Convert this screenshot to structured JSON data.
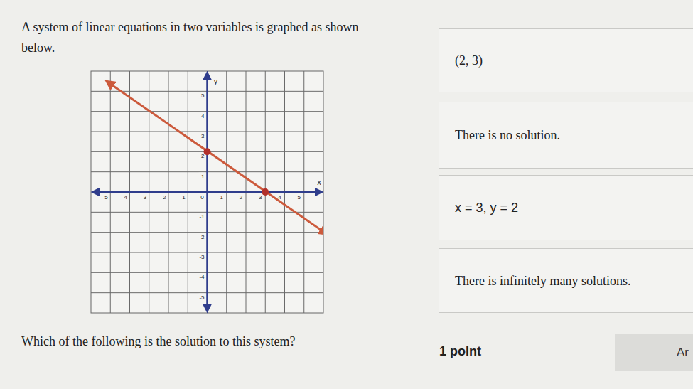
{
  "intro": "A system of linear equations in two variables is graphed as shown below.",
  "question": "Which of the following is the solution to this system?",
  "answers": [
    "(2, 3)",
    "There is no solution.",
    "x = 3, y = 2",
    "There is infinitely many solutions."
  ],
  "points_label": "1 point",
  "button_label": "Ar",
  "chart_data": {
    "type": "line",
    "x_label": "x",
    "y_label": "y",
    "xlim": [
      -6,
      6
    ],
    "ylim": [
      -6,
      6
    ],
    "xticks": [
      -5,
      -4,
      -3,
      -2,
      -1,
      0,
      1,
      2,
      3,
      4,
      5
    ],
    "yticks": [
      -5,
      -4,
      -3,
      -2,
      -1,
      1,
      2,
      3,
      4,
      5
    ],
    "grid": true,
    "series": [
      {
        "type": "line",
        "x": [
          -5.2,
          6.2
        ],
        "values": [
          5.5,
          -2.1
        ],
        "color": "#cc5a3c",
        "line_style": "solid"
      },
      {
        "type": "scatter",
        "x": [
          0,
          3
        ],
        "values": [
          2,
          0
        ],
        "color": "#b2302a",
        "marker": "circle"
      }
    ]
  }
}
